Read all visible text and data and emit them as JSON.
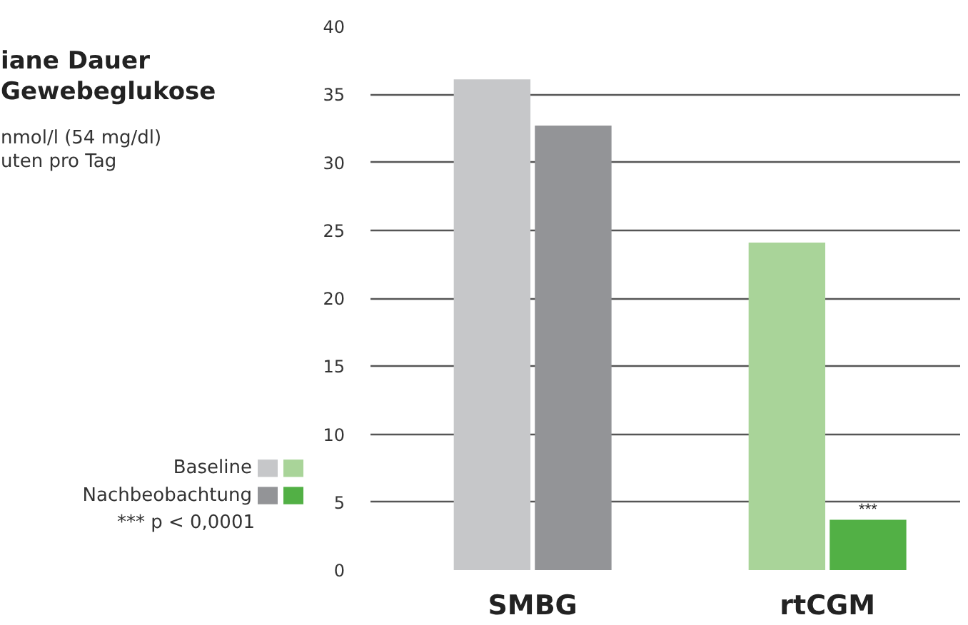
{
  "chart_data": {
    "type": "bar",
    "title": "iane Dauer\nGewebeglukose",
    "subtitle": "nmol/l (54 mg/dl)\nuten pro Tag",
    "categories": [
      "SMBG",
      "rtCGM"
    ],
    "series": [
      {
        "name": "Baseline",
        "colors": [
          "#c6c7c9",
          "#a9d499"
        ],
        "values": [
          36.1,
          24.1
        ]
      },
      {
        "name": "Nachbeobachtung",
        "colors": [
          "#939497",
          "#52b045"
        ],
        "values": [
          32.7,
          3.7
        ]
      }
    ],
    "ylim": [
      0,
      40
    ],
    "yticks": [
      0,
      5,
      10,
      15,
      20,
      25,
      30,
      35,
      40
    ],
    "grid": "y",
    "legend": "bottom left",
    "annotations": [
      {
        "text": "***",
        "x": "rtCGM",
        "y": 3.7
      },
      "*** p < 0,0001"
    ]
  }
}
